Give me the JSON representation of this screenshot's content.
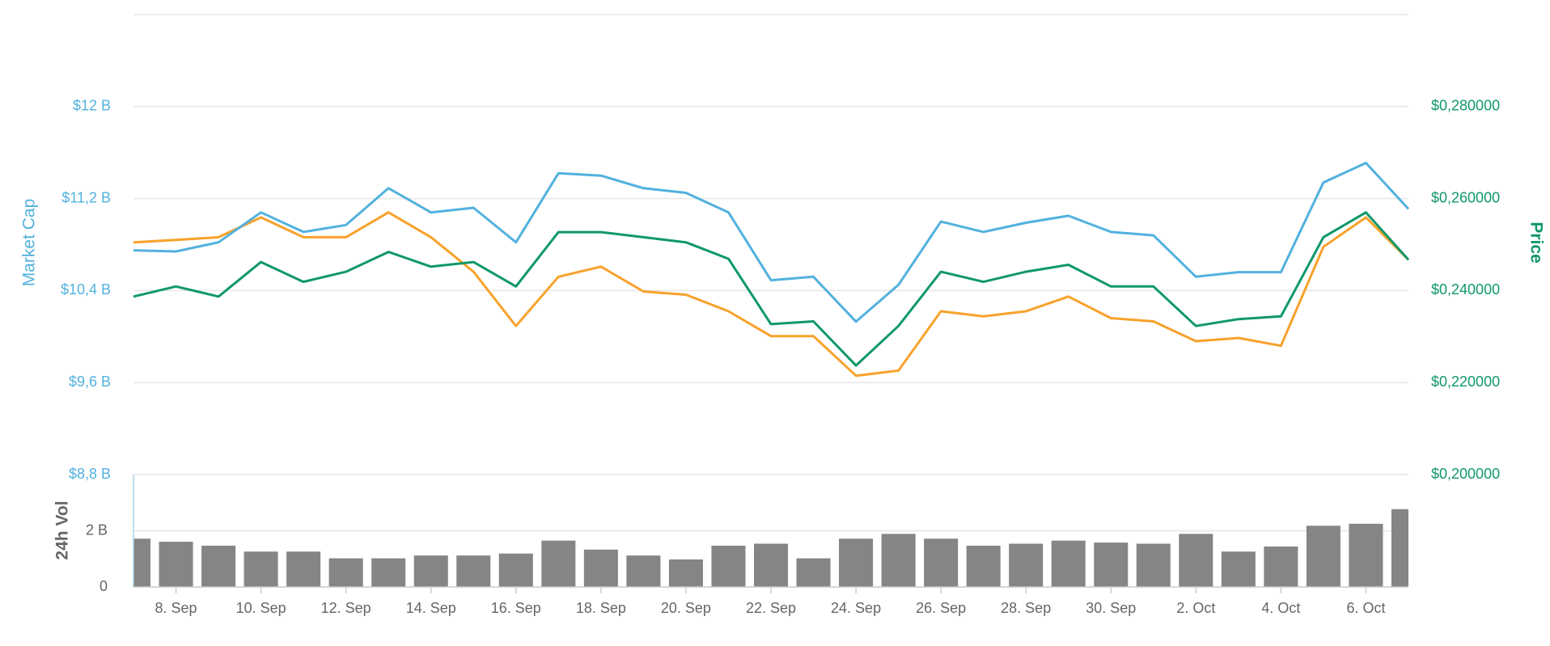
{
  "chart_data": [
    {
      "type": "line",
      "ylabel": "Market Cap",
      "y2label": "Price",
      "categories": [
        null,
        "8. Sep",
        null,
        "10. Sep",
        null,
        "12. Sep",
        null,
        "14. Sep",
        null,
        "16. Sep",
        null,
        "18. Sep",
        null,
        "20. Sep",
        null,
        "22. Sep",
        null,
        "24. Sep",
        null,
        "26. Sep",
        null,
        "28. Sep",
        null,
        "30. Sep",
        null,
        "2. Oct",
        null,
        "4. Oct",
        null,
        "6. Oct",
        null
      ],
      "ylim": [
        8.8,
        12.8
      ],
      "yticks": [
        {
          "value": 8.8,
          "label": "$8,8 B"
        },
        {
          "value": 9.6,
          "label": "$9,6 B"
        },
        {
          "value": 10.4,
          "label": "$10,4 B"
        },
        {
          "value": 11.2,
          "label": "$11,2 B"
        },
        {
          "value": 12,
          "label": "$12 B"
        }
      ],
      "y2lim": [
        0.2,
        0.3
      ],
      "y2ticks": [
        {
          "value": 0.2,
          "label": "$0,200000"
        },
        {
          "value": 0.22,
          "label": "$0,220000"
        },
        {
          "value": 0.24,
          "label": "$0,240000"
        },
        {
          "value": 0.26,
          "label": "$0,260000"
        },
        {
          "value": 0.28,
          "label": "$0,280000"
        }
      ],
      "grid": true,
      "series": [
        {
          "name": "Market Cap",
          "color": "#52b1de",
          "values": [
            10.75,
            10.74,
            10.82,
            11.08,
            10.91,
            10.97,
            11.29,
            11.08,
            11.12,
            10.82,
            11.42,
            11.4,
            11.29,
            11.25,
            11.08,
            10.49,
            10.52,
            10.13,
            10.45,
            11.0,
            10.91,
            10.99,
            11.05,
            10.91,
            10.88,
            10.52,
            10.56,
            10.56,
            11.34,
            11.51,
            11.11
          ]
        },
        {
          "name": "Price",
          "axis": "y2",
          "color": "#10986b",
          "values": [
            0.2387,
            0.2409,
            0.2387,
            0.2462,
            0.2419,
            0.2441,
            0.2484,
            0.2452,
            0.2462,
            0.2409,
            0.2527,
            0.2527,
            0.2516,
            0.2505,
            0.2469,
            0.2327,
            0.2333,
            0.2237,
            0.2323,
            0.2441,
            0.2419,
            0.2441,
            0.2456,
            0.2409,
            0.2409,
            0.2323,
            0.2338,
            0.2344,
            0.2516,
            0.257,
            0.2467
          ]
        },
        {
          "axis": "y2",
          "color": "#f7a22c",
          "values": [
            0.2505,
            0.251,
            0.2516,
            0.2559,
            0.2516,
            0.2516,
            0.257,
            0.2516,
            0.2441,
            0.2323,
            0.243,
            0.2452,
            0.2398,
            0.2391,
            0.2355,
            0.2301,
            0.2301,
            0.2215,
            0.2226,
            0.2355,
            0.2344,
            0.2355,
            0.2387,
            0.234,
            0.2333,
            0.229,
            0.2297,
            0.228,
            0.2495,
            0.2559,
            0.2467
          ]
        }
      ]
    },
    {
      "type": "bar",
      "ylabel": "24h Vol",
      "color": "#858585",
      "ylim": [
        0,
        4
      ],
      "yticks": [
        0,
        {
          "value": 2,
          "label": "2 B"
        }
      ],
      "grid": true,
      "values": [
        1.72,
        1.61,
        1.47,
        1.26,
        1.26,
        1.02,
        1.02,
        1.12,
        1.12,
        1.19,
        1.65,
        1.33,
        1.12,
        0.98,
        1.47,
        1.54,
        1.02,
        1.72,
        1.89,
        1.72,
        1.47,
        1.54,
        1.65,
        1.58,
        1.54,
        1.89,
        1.26,
        1.44,
        2.18,
        2.25,
        2.77
      ]
    }
  ]
}
